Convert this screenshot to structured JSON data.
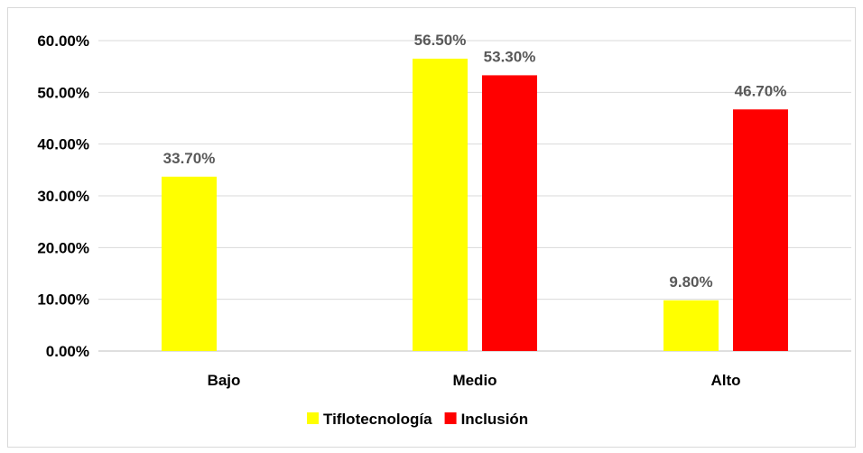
{
  "chart_data": {
    "type": "bar",
    "categories": [
      "Bajo",
      "Medio",
      "Alto"
    ],
    "series": [
      {
        "name": "Tiflotecnología",
        "color": "#ffff00",
        "values": [
          33.7,
          56.5,
          9.8
        ],
        "labels": [
          "33.70%",
          "56.50%",
          "9.80%"
        ]
      },
      {
        "name": "Inclusión",
        "color": "#ff0000",
        "values": [
          0,
          53.3,
          46.7
        ],
        "labels": [
          "",
          "53.30%",
          "46.70%"
        ]
      }
    ],
    "ylim": [
      0,
      60
    ],
    "yticks": [
      "0.00%",
      "10.00%",
      "20.00%",
      "30.00%",
      "40.00%",
      "50.00%",
      "60.00%"
    ],
    "grid": true,
    "legend_position": "bottom"
  }
}
